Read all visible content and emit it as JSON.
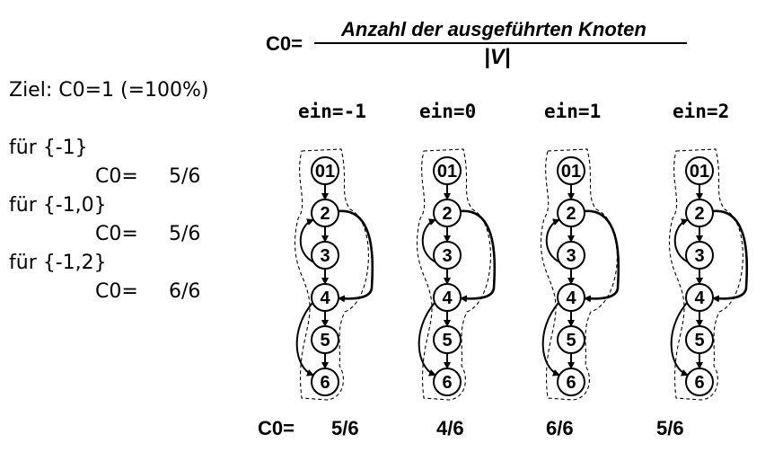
{
  "formula": {
    "lhs": "C0=",
    "numerator": "Anzahl der ausgeführten Knoten",
    "denominator": "|V|"
  },
  "goal": "Ziel: C0=1  (=100%)",
  "sets": [
    {
      "label": "für {-1}",
      "c0_label": "C0=",
      "value": "5/6"
    },
    {
      "label": "für {-1,0}",
      "c0_label": "C0=",
      "value": "5/6"
    },
    {
      "label": "für {-1,2}",
      "c0_label": "C0=",
      "value": "6/6"
    }
  ],
  "nodes": [
    "01",
    "2",
    "3",
    "4",
    "5",
    "6"
  ],
  "graphs": [
    {
      "input": "ein=-1",
      "result": "5/6"
    },
    {
      "input": "ein=0",
      "result": "4/6"
    },
    {
      "input": "ein=1",
      "result": "6/6"
    },
    {
      "input": "ein=2",
      "result": "5/6"
    }
  ],
  "bottom_label": "C0="
}
